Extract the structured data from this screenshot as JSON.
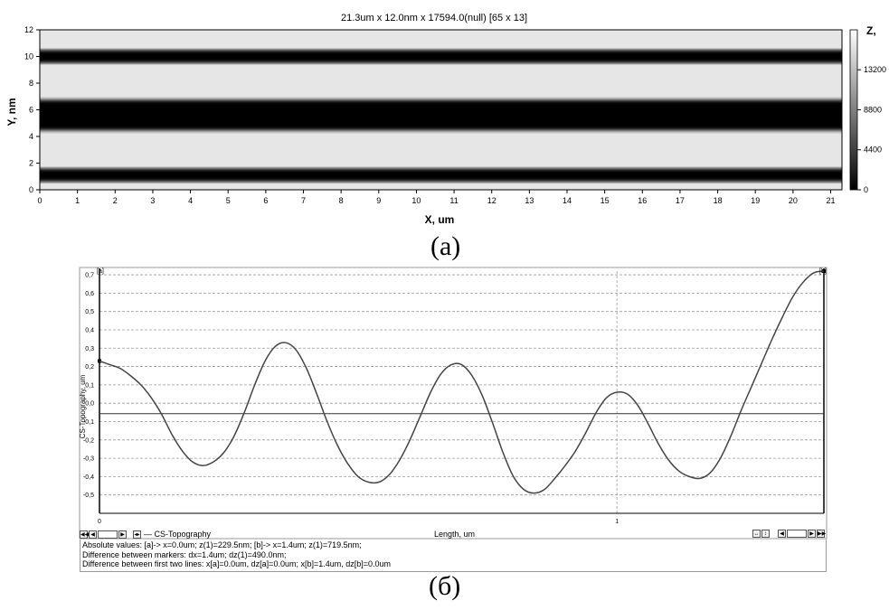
{
  "chart_data": [
    {
      "type": "heatmap",
      "title": "21.3um x 12.0nm x 17594.0(null) [65 x 13]",
      "xlabel": "X, um",
      "ylabel": "Y, nm",
      "colorbar_label": "Z,",
      "xlim": [
        0,
        21.3
      ],
      "ylim": [
        0,
        12
      ],
      "x_ticks": [
        0,
        1,
        2,
        3,
        4,
        5,
        6,
        7,
        8,
        9,
        10,
        11,
        12,
        13,
        14,
        15,
        16,
        17,
        18,
        19,
        20,
        21
      ],
      "y_ticks": [
        0,
        2,
        4,
        6,
        8,
        10,
        12
      ],
      "colorbar_ticks": [
        0,
        4400,
        8800,
        13200
      ],
      "colorbar_range": [
        0,
        17594
      ],
      "colormap": "grayscale",
      "dark_bands_y": [
        {
          "center": 1.1,
          "width": 1.0
        },
        {
          "center": 5.6,
          "width": 2.3
        },
        {
          "center": 10.0,
          "width": 1.0
        }
      ]
    },
    {
      "type": "line",
      "series": [
        {
          "name": "CS-Topography",
          "x": [
            0.0,
            0.02,
            0.04,
            0.06,
            0.08,
            0.1,
            0.12,
            0.14,
            0.16,
            0.18,
            0.2,
            0.22,
            0.24,
            0.26,
            0.28,
            0.3,
            0.32,
            0.34,
            0.36,
            0.38,
            0.4,
            0.42,
            0.44,
            0.46,
            0.48,
            0.5,
            0.52,
            0.54,
            0.56,
            0.58,
            0.6,
            0.62,
            0.64,
            0.66,
            0.68,
            0.7,
            0.72,
            0.74,
            0.76,
            0.78,
            0.8,
            0.82,
            0.84,
            0.86,
            0.88,
            0.9,
            0.92,
            0.94,
            0.96,
            0.98,
            1.0,
            1.02,
            1.04,
            1.06,
            1.08,
            1.1,
            1.12,
            1.14,
            1.16,
            1.18,
            1.2,
            1.22,
            1.24,
            1.26,
            1.28,
            1.3,
            1.32,
            1.34,
            1.36,
            1.38,
            1.4
          ],
          "y": [
            0.23,
            0.21,
            0.19,
            0.15,
            0.1,
            0.03,
            -0.06,
            -0.17,
            -0.26,
            -0.32,
            -0.34,
            -0.32,
            -0.27,
            -0.18,
            -0.05,
            0.1,
            0.23,
            0.31,
            0.33,
            0.29,
            0.19,
            0.05,
            -0.1,
            -0.23,
            -0.33,
            -0.4,
            -0.43,
            -0.43,
            -0.39,
            -0.31,
            -0.2,
            -0.07,
            0.06,
            0.16,
            0.21,
            0.21,
            0.15,
            0.04,
            -0.11,
            -0.27,
            -0.4,
            -0.47,
            -0.49,
            -0.47,
            -0.41,
            -0.34,
            -0.26,
            -0.16,
            -0.05,
            0.03,
            0.06,
            0.05,
            -0.01,
            -0.11,
            -0.22,
            -0.31,
            -0.37,
            -0.4,
            -0.41,
            -0.38,
            -0.3,
            -0.18,
            -0.04,
            0.09,
            0.22,
            0.35,
            0.47,
            0.58,
            0.66,
            0.71,
            0.72
          ]
        }
      ],
      "xlabel": "Length, um",
      "ylabel": "CS-Topography, um",
      "xlim": [
        0,
        1.4
      ],
      "ylim": [
        -0.6,
        0.72
      ],
      "x_ticks": [
        0,
        1
      ],
      "y_ticks": [
        0.7,
        0.6,
        0.5,
        0.4,
        0.3,
        0.2,
        0.1,
        0.0,
        -0.1,
        -0.2,
        -0.3,
        -0.4,
        -0.5
      ],
      "y_tick_labels": [
        "0,7",
        "0,6",
        "0,5",
        "0,4",
        "0,3",
        "0,2",
        "0,1",
        "0,0",
        "-0,1",
        "-0,2",
        "-0,3",
        "-0,4",
        "-0,5"
      ],
      "reference_line_y": -0.057,
      "marker_a_label": "[a]",
      "marker_b_label": "[b]",
      "grid": true
    }
  ],
  "panel_a": {
    "caption": "(a)"
  },
  "panel_b": {
    "caption": "(б)",
    "legend_label": "— CS-Topography",
    "xlabel_text": "Length, um",
    "info_lines": [
      "Absolute values: [a]-> x=0.0um;  z(1)=229.5nm;    [b]-> x=1.4um;  z(1)=719.5nm;",
      "Difference between markers: dx=1.4um; dz(1)=490.0nm;",
      "Difference between first two lines: x[a]=0.0um, dz[a]=0.0um;   x[b]=1.4um, dz[b]=0.0um"
    ],
    "nav_left_icons": [
      "first-icon",
      "prev-icon",
      "page-box",
      "next-icon"
    ],
    "nav_right_icons": [
      "fit-width-icon",
      "fit-height-icon",
      "prev-icon",
      "page-box",
      "next-icon",
      "last-icon"
    ]
  }
}
